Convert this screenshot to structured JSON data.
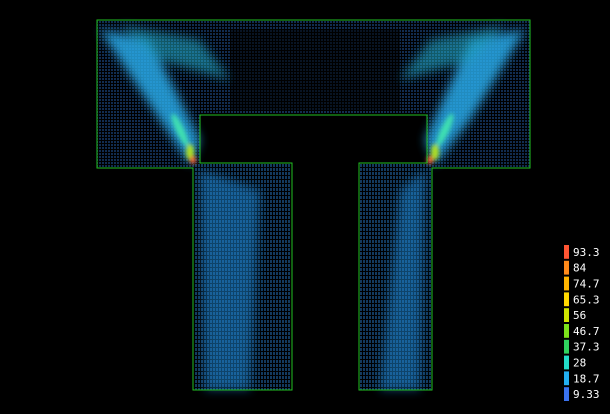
{
  "legend": {
    "levels": [
      {
        "label": 93.3,
        "color": "#ff5533"
      },
      {
        "label": 84,
        "color": "#ff8a1a"
      },
      {
        "label": 74.7,
        "color": "#ffb400"
      },
      {
        "label": 65.3,
        "color": "#ffd800"
      },
      {
        "label": 56,
        "color": "#cfe400"
      },
      {
        "label": 46.7,
        "color": "#7ce21a"
      },
      {
        "label": 37.3,
        "color": "#2fd25e"
      },
      {
        "label": 28,
        "color": "#22dcc8"
      },
      {
        "label": 18.7,
        "color": "#22aef0"
      },
      {
        "label": 9.33,
        "color": "#3a72ee"
      }
    ]
  }
}
